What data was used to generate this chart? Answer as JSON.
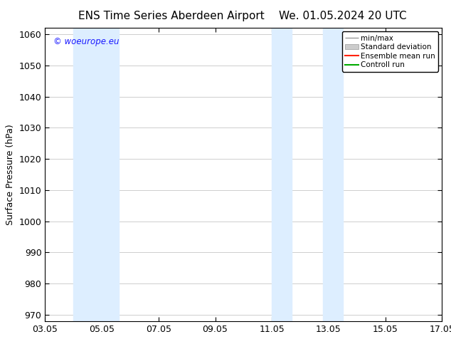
{
  "title_left": "ENS Time Series Aberdeen Airport",
  "title_right": "We. 01.05.2024 20 UTC",
  "ylabel": "Surface Pressure (hPa)",
  "ylim": [
    968,
    1062
  ],
  "yticks": [
    970,
    980,
    990,
    1000,
    1010,
    1020,
    1030,
    1040,
    1050,
    1060
  ],
  "xlim": [
    0,
    14
  ],
  "xtick_labels": [
    "03.05",
    "05.05",
    "07.05",
    "09.05",
    "11.05",
    "13.05",
    "15.05",
    "17.05"
  ],
  "xtick_positions": [
    0,
    2,
    4,
    6,
    8,
    10,
    12,
    14
  ],
  "shade_bands": [
    {
      "x_start": 1.0,
      "x_end": 2.0,
      "color": "#ddeeff"
    },
    {
      "x_start": 2.0,
      "x_end": 2.5,
      "color": "#ddeeff"
    },
    {
      "x_start": 8.0,
      "x_end": 8.8,
      "color": "#ddeeff"
    },
    {
      "x_start": 9.8,
      "x_end": 10.5,
      "color": "#ddeeff"
    }
  ],
  "watermark_text": "© woeurope.eu",
  "watermark_color": "#1a1aff",
  "bg_color": "#ffffff",
  "plot_bg_color": "#ffffff",
  "grid_color": "#bbbbbb",
  "title_fontsize": 11,
  "label_fontsize": 9,
  "tick_fontsize": 9
}
